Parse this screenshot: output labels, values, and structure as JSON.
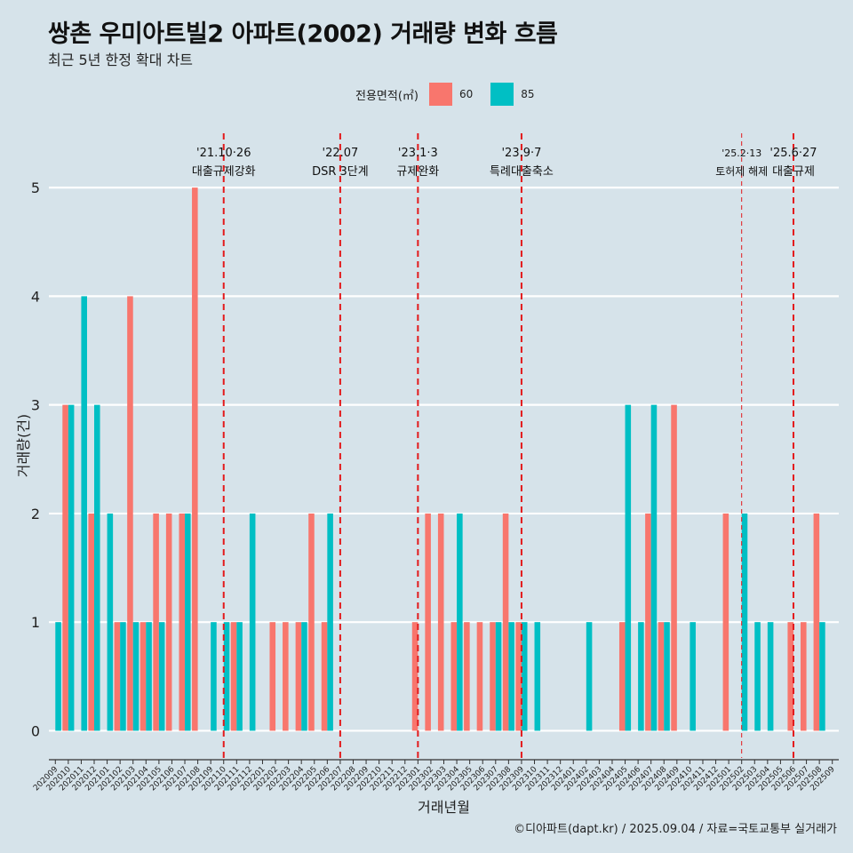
{
  "title": "쌍촌 우미아트빌2 아파트(2002) 거래량 변화 흐름",
  "subtitle": "최근 5년 한정 확대 차트",
  "caption": "©디아파트(dapt.kr) / 2025.09.04 / 자료=국토교통부 실거래가",
  "legend": {
    "title": "전용면적(㎡)",
    "items": [
      {
        "label": "60",
        "color": "#f8766d"
      },
      {
        "label": "85",
        "color": "#00bfc4"
      }
    ]
  },
  "chart_data": {
    "type": "bar",
    "xlabel": "거래년월",
    "ylabel": "거래량(건)",
    "ylim": [
      -0.25,
      5.5
    ],
    "yticks": [
      0,
      1,
      2,
      3,
      4,
      5
    ],
    "grid": true,
    "legend_position": "top",
    "categories": [
      "202009",
      "202010",
      "202011",
      "202012",
      "202101",
      "202102",
      "202103",
      "202104",
      "202105",
      "202106",
      "202107",
      "202108",
      "202109",
      "202110",
      "202111",
      "202112",
      "202201",
      "202202",
      "202203",
      "202204",
      "202205",
      "202206",
      "202207",
      "202208",
      "202209",
      "202210",
      "202211",
      "202212",
      "202301",
      "202302",
      "202303",
      "202304",
      "202305",
      "202306",
      "202307",
      "202308",
      "202309",
      "202310",
      "202311",
      "202312",
      "202401",
      "202402",
      "202403",
      "202404",
      "202405",
      "202406",
      "202407",
      "202408",
      "202409",
      "202410",
      "202411",
      "202412",
      "202501",
      "202502",
      "202503",
      "202504",
      "202505",
      "202506",
      "202507",
      "202508",
      "202509"
    ],
    "series": [
      {
        "name": "60",
        "color": "#f8766d",
        "values": [
          0,
          3,
          0,
          2,
          0,
          1,
          4,
          1,
          2,
          2,
          2,
          5,
          0,
          0,
          1,
          0,
          0,
          1,
          1,
          1,
          2,
          1,
          0,
          0,
          0,
          0,
          0,
          0,
          1,
          2,
          2,
          1,
          1,
          1,
          1,
          2,
          1,
          0,
          0,
          0,
          0,
          0,
          0,
          0,
          1,
          0,
          2,
          1,
          3,
          0,
          0,
          0,
          2,
          0,
          0,
          0,
          0,
          1,
          1,
          2,
          0
        ]
      },
      {
        "name": "85",
        "color": "#00bfc4",
        "values": [
          1,
          3,
          4,
          3,
          2,
          1,
          1,
          1,
          1,
          0,
          2,
          0,
          1,
          1,
          1,
          2,
          0,
          0,
          0,
          1,
          0,
          2,
          0,
          0,
          0,
          0,
          0,
          0,
          0,
          0,
          0,
          2,
          0,
          0,
          1,
          1,
          1,
          1,
          0,
          0,
          0,
          1,
          0,
          0,
          3,
          1,
          3,
          1,
          0,
          1,
          0,
          0,
          0,
          2,
          1,
          1,
          0,
          0,
          0,
          1,
          0
        ]
      }
    ],
    "events": [
      {
        "x": "202110",
        "date": "'21.10·26",
        "label": "대출규제강화",
        "style": "bold"
      },
      {
        "x": "202207",
        "date": "'22.07",
        "label": "DSR 3단계",
        "style": "bold"
      },
      {
        "x": "202301",
        "date": "'23.1·3",
        "label": "규제완화",
        "style": "bold"
      },
      {
        "x": "202309",
        "date": "'23.9·7",
        "label": "특례대출축소",
        "style": "bold"
      },
      {
        "x": "202502",
        "date": "'25.2·13",
        "label": "토허제 해제",
        "style": "thin"
      },
      {
        "x": "202506",
        "date": "'25.6·27",
        "label": "대출규제",
        "style": "bold"
      }
    ]
  }
}
